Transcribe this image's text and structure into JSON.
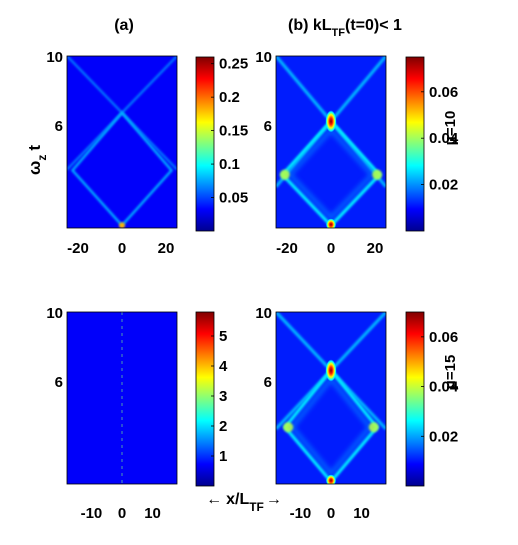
{
  "figure": {
    "panel_a_label": "(a)",
    "panel_b_label_main": "(b) kL",
    "panel_b_label_sub": "TF",
    "panel_b_label_tail": "(t=0)< 1",
    "ylabel_main": "ω",
    "ylabel_sub": "z",
    "ylabel_t": "t",
    "xlabel_main": "x/L",
    "xlabel_sub": "TF",
    "xlabel_arrow_left": "←",
    "xlabel_arrow_right": "→",
    "row_labels": [
      "μ=10",
      "μ=15"
    ]
  },
  "chart_data": [
    {
      "type": "heatmap",
      "id": "top-left",
      "title": "(a)",
      "x_range": [
        -25,
        25
      ],
      "xticks": [
        -20,
        0,
        20
      ],
      "y_range": [
        0,
        10
      ],
      "yticks": [
        6,
        10
      ],
      "colorbar_range": [
        0,
        0.26
      ],
      "colorbar_ticks": [
        0.05,
        0.1,
        0.15,
        0.2,
        0.25
      ],
      "row_label": "",
      "features": {
        "diamond_apex_t": 6.7,
        "crossing_t": 6.7,
        "peak_x": 0,
        "peak_t": 0,
        "peak_value": 0.25
      }
    },
    {
      "type": "heatmap",
      "id": "top-right",
      "title": "(b) kL_TF(t=0)< 1",
      "x_range": [
        -25,
        25
      ],
      "xticks": [
        -20,
        0,
        20
      ],
      "y_range": [
        0,
        10
      ],
      "yticks": [
        6,
        10
      ],
      "colorbar_range": [
        0,
        0.075
      ],
      "colorbar_ticks": [
        0.02,
        0.04,
        0.06
      ],
      "row_label": "μ=10",
      "features": {
        "crossing_t": 6.2,
        "peak_x": 0,
        "peak_values": [
          0.07,
          0.07
        ]
      }
    },
    {
      "type": "heatmap",
      "id": "bottom-left",
      "title": "",
      "x_range": [
        -18,
        18
      ],
      "xticks": [
        -10,
        0,
        10
      ],
      "y_range": [
        0,
        10
      ],
      "yticks": [
        6,
        10
      ],
      "colorbar_range": [
        0,
        5.8
      ],
      "colorbar_ticks": [
        1,
        2,
        3,
        4,
        5
      ],
      "row_label": "",
      "features": {
        "line_x": 0,
        "peak_value": 5.5
      }
    },
    {
      "type": "heatmap",
      "id": "bottom-right",
      "title": "",
      "x_range": [
        -18,
        18
      ],
      "xticks": [
        -10,
        0,
        10
      ],
      "y_range": [
        0,
        10
      ],
      "yticks": [
        6,
        10
      ],
      "colorbar_range": [
        0,
        0.07
      ],
      "colorbar_ticks": [
        0.02,
        0.04,
        0.06
      ],
      "row_label": "μ=15",
      "features": {
        "crossing_t": 6.6,
        "peak_x": 0,
        "peak_values": [
          0.065,
          0.065
        ]
      }
    }
  ]
}
